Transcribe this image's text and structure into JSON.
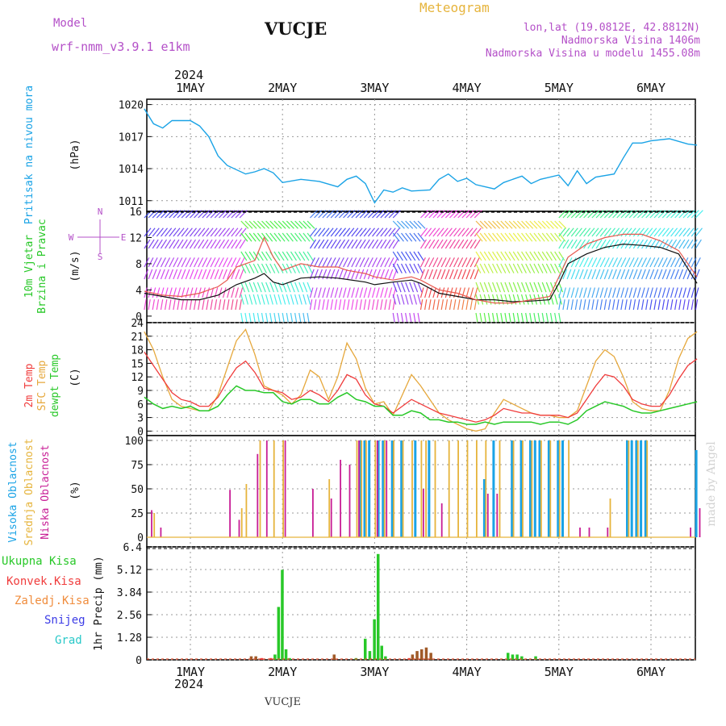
{
  "header": {
    "model_label": "Model",
    "model_name": "wrf-nmm_v3.9.1 e1km",
    "station": "VUCJE",
    "product": "Meteogram",
    "coords": "lon,lat (19.0812E, 42.8812N)",
    "elevation": "Nadmorska Visina 1406m",
    "model_elevation": "Nadmorska Visina u modelu 1455.08m",
    "watermark": "made by Angel",
    "footer_station": "VUCJE"
  },
  "time_axis": {
    "year": "2024",
    "days": [
      "1MAY",
      "2MAY",
      "3MAY",
      "4MAY",
      "5MAY",
      "6MAY"
    ]
  },
  "colors": {
    "pressure": "#1aa3e6",
    "t2m": "#f03c3c",
    "tsfc": "#e6a83c",
    "dewpoint": "#28c828",
    "high_cloud": "#1aa3e6",
    "mid_cloud": "#e6b43c",
    "low_cloud": "#c81e96",
    "total_precip": "#28c828",
    "conv_precip": "#f03c3c",
    "frz_precip": "#f08c3c",
    "snow": "#3c3ce6",
    "hail": "#28c8c8",
    "ylabel_purple": "#b450c8"
  },
  "chart_data": [
    {
      "type": "line",
      "title": "Pritisak na nivou mora",
      "ylabel": "(hPa)",
      "yticks": [
        "1020",
        "1017",
        "1014",
        "1011"
      ],
      "ylim": [
        1010,
        1020.5
      ],
      "x": [
        0.5,
        0.6,
        0.7,
        0.8,
        1.0,
        1.1,
        1.2,
        1.3,
        1.4,
        1.6,
        1.7,
        1.8,
        1.9,
        2.0,
        2.2,
        2.4,
        2.6,
        2.7,
        2.8,
        2.9,
        3.0,
        3.1,
        3.2,
        3.3,
        3.4,
        3.6,
        3.7,
        3.8,
        3.9,
        4.0,
        4.1,
        4.3,
        4.4,
        4.6,
        4.7,
        4.8,
        5.0,
        5.1,
        5.2,
        5.3,
        5.4,
        5.6,
        5.7,
        5.8,
        5.9,
        6.0,
        6.2,
        6.4,
        6.5
      ],
      "series": [
        {
          "values": [
            1019.6,
            1018.2,
            1017.8,
            1018.5,
            1018.5,
            1018.0,
            1017.0,
            1015.2,
            1014.3,
            1013.5,
            1013.7,
            1014.0,
            1013.6,
            1012.7,
            1013.0,
            1012.8,
            1012.3,
            1013.0,
            1013.3,
            1012.6,
            1010.8,
            1012.0,
            1011.8,
            1012.2,
            1011.9,
            1012.0,
            1013.0,
            1013.5,
            1012.8,
            1013.1,
            1012.5,
            1012.1,
            1012.7,
            1013.3,
            1012.6,
            1013.0,
            1013.4,
            1012.4,
            1013.8,
            1012.6,
            1013.2,
            1013.5,
            1015.0,
            1016.4,
            1016.4,
            1016.6,
            1016.8,
            1016.3,
            1016.2
          ]
        }
      ]
    },
    {
      "type": "line",
      "title": "10m Vjetar Brzina i Pravac",
      "ylabel": "(m/s)",
      "direction_legend": [
        "N",
        "S",
        "W",
        "E"
      ],
      "yticks": [
        "16",
        "12",
        "8",
        "4",
        "0"
      ],
      "ylim": [
        -1,
        16
      ],
      "x": [
        0.5,
        0.7,
        0.9,
        1.1,
        1.3,
        1.4,
        1.5,
        1.7,
        1.8,
        1.9,
        2.0,
        2.2,
        2.4,
        2.6,
        2.7,
        2.9,
        3.0,
        3.2,
        3.4,
        3.5,
        3.7,
        3.9,
        4.1,
        4.3,
        4.5,
        4.7,
        4.9,
        5.0,
        5.1,
        5.3,
        5.5,
        5.7,
        5.9,
        6.1,
        6.3,
        6.5
      ],
      "series": [
        {
          "values": [
            3.5,
            3.0,
            2.5,
            2.5,
            3.2,
            4.0,
            4.8,
            5.8,
            6.5,
            5.2,
            4.8,
            5.8,
            6.0,
            5.8,
            5.6,
            5.2,
            4.8,
            5.2,
            5.5,
            5.0,
            3.5,
            3.0,
            2.5,
            2.5,
            2.2,
            2.3,
            2.5,
            5.0,
            8.0,
            9.5,
            10.5,
            11.0,
            10.8,
            10.5,
            9.5,
            5.0
          ]
        },
        {
          "values": [
            3.8,
            3.2,
            3.0,
            3.5,
            4.5,
            5.5,
            7.5,
            8.5,
            12.0,
            9.0,
            7.0,
            8.0,
            7.5,
            7.5,
            7.0,
            6.5,
            6.0,
            5.5,
            6.0,
            5.5,
            4.0,
            3.5,
            2.5,
            2.0,
            2.0,
            2.5,
            3.0,
            6.0,
            9.0,
            11.0,
            12.0,
            12.5,
            12.5,
            11.5,
            10.0,
            6.0
          ]
        }
      ]
    },
    {
      "type": "line",
      "title": "2m Temp / SFC Temp / dewpt Temp",
      "ylabel": "(C)",
      "yticks": [
        "24",
        "21",
        "18",
        "15",
        "12",
        "9",
        "6",
        "3",
        "0"
      ],
      "ylim": [
        -1,
        24
      ],
      "legend": [
        "2m Temp",
        "SFC Temp",
        "dewpt Temp"
      ],
      "x": [
        0.5,
        0.6,
        0.7,
        0.8,
        0.9,
        1.0,
        1.1,
        1.2,
        1.3,
        1.4,
        1.5,
        1.6,
        1.7,
        1.8,
        1.9,
        2.0,
        2.1,
        2.2,
        2.3,
        2.4,
        2.5,
        2.6,
        2.7,
        2.8,
        2.9,
        3.0,
        3.1,
        3.2,
        3.3,
        3.4,
        3.5,
        3.6,
        3.7,
        3.8,
        3.9,
        4.0,
        4.1,
        4.2,
        4.3,
        4.4,
        4.5,
        4.6,
        4.7,
        4.8,
        4.9,
        5.0,
        5.1,
        5.2,
        5.3,
        5.4,
        5.5,
        5.6,
        5.7,
        5.8,
        5.9,
        6.0,
        6.1,
        6.2,
        6.3,
        6.4,
        6.5
      ],
      "series": [
        {
          "name": "2m Temp",
          "values": [
            17.5,
            14.5,
            11.5,
            8.5,
            7.0,
            6.5,
            5.5,
            5.5,
            7.5,
            11.0,
            14.0,
            15.5,
            13.0,
            9.5,
            9.0,
            8.5,
            7.0,
            7.5,
            9.0,
            8.0,
            6.5,
            9.0,
            12.5,
            11.5,
            8.0,
            6.0,
            5.5,
            4.0,
            5.5,
            7.0,
            6.0,
            5.0,
            4.0,
            3.5,
            3.0,
            2.5,
            2.0,
            2.5,
            3.5,
            5.0,
            4.5,
            4.0,
            4.0,
            3.5,
            3.5,
            3.5,
            3.0,
            4.0,
            7.0,
            10.0,
            12.5,
            12.0,
            10.0,
            7.0,
            6.0,
            5.5,
            5.5,
            8.0,
            11.5,
            14.5,
            16.0
          ]
        },
        {
          "name": "SFC Temp",
          "values": [
            22.0,
            18.0,
            12.0,
            7.0,
            5.5,
            5.0,
            4.5,
            4.5,
            8.0,
            14.0,
            20.0,
            22.5,
            17.0,
            10.0,
            9.0,
            8.0,
            6.0,
            8.0,
            13.5,
            12.0,
            7.0,
            12.0,
            19.5,
            16.0,
            9.5,
            6.0,
            6.5,
            3.5,
            8.0,
            12.5,
            10.0,
            7.0,
            4.0,
            2.5,
            1.5,
            0.5,
            0.0,
            0.5,
            4.0,
            7.0,
            6.0,
            5.0,
            4.0,
            3.5,
            3.5,
            3.0,
            3.0,
            4.5,
            10.0,
            15.5,
            18.0,
            16.5,
            12.0,
            6.5,
            5.0,
            4.5,
            4.5,
            9.0,
            16.0,
            20.5,
            22.0
          ]
        },
        {
          "name": "dewpt Temp",
          "values": [
            7.5,
            6.0,
            5.0,
            5.5,
            5.0,
            5.5,
            4.5,
            4.5,
            5.5,
            8.0,
            10.0,
            9.0,
            9.0,
            8.5,
            8.5,
            6.5,
            6.0,
            7.0,
            7.0,
            6.0,
            6.0,
            7.5,
            8.5,
            7.0,
            6.5,
            5.5,
            5.5,
            3.5,
            3.5,
            4.5,
            4.0,
            2.5,
            2.5,
            2.0,
            2.0,
            1.5,
            1.5,
            2.0,
            1.5,
            2.0,
            2.0,
            2.0,
            2.0,
            1.5,
            2.0,
            2.0,
            1.5,
            2.5,
            4.5,
            5.5,
            6.5,
            6.0,
            5.5,
            4.5,
            4.0,
            4.0,
            4.5,
            5.0,
            5.5,
            6.0,
            6.5
          ]
        }
      ]
    },
    {
      "type": "bar",
      "title": "Visoka / Srednja / Niska Oblacnost",
      "ylabel": "(%)",
      "yticks": [
        "100",
        "75",
        "50",
        "25",
        "0"
      ],
      "ylim": [
        0,
        100
      ],
      "legend": [
        "Visoka Oblacnost",
        "Srednja Oblacnost",
        "Niska Oblacnost"
      ],
      "series": [
        {
          "name": "Visoka Oblacnost",
          "x": [
            2.85,
            2.9,
            2.95,
            3.05,
            3.1,
            3.2,
            3.3,
            3.45,
            3.6,
            4.2,
            4.3,
            4.5,
            4.6,
            4.7,
            4.75,
            4.8,
            4.9,
            5.0,
            5.05,
            5.75,
            5.8,
            5.85,
            5.9,
            5.95,
            6.5
          ],
          "values": [
            100,
            100,
            100,
            100,
            100,
            100,
            100,
            100,
            100,
            60,
            100,
            100,
            100,
            100,
            100,
            100,
            100,
            100,
            100,
            100,
            100,
            100,
            100,
            100,
            90
          ]
        },
        {
          "name": "Srednja Oblacnost",
          "x": [
            0.6,
            1.55,
            1.6,
            1.75,
            1.9,
            2.0,
            2.5,
            2.8,
            2.85,
            2.9,
            3.0,
            3.1,
            3.2,
            3.3,
            3.4,
            3.5,
            3.55,
            3.65,
            3.8,
            3.9,
            4.0,
            4.1,
            4.2,
            4.35,
            4.5,
            4.6,
            4.7,
            4.8,
            4.9,
            5.0,
            5.1,
            5.55,
            5.75,
            5.85,
            5.95
          ],
          "values": [
            25,
            30,
            55,
            100,
            100,
            100,
            60,
            100,
            100,
            100,
            100,
            100,
            100,
            100,
            100,
            100,
            100,
            100,
            100,
            100,
            100,
            100,
            100,
            100,
            100,
            100,
            100,
            100,
            100,
            100,
            100,
            40,
            100,
            100,
            100
          ]
        },
        {
          "name": "Niska Oblacnost",
          "x": [
            0.55,
            0.65,
            1.4,
            1.5,
            1.7,
            1.8,
            2.0,
            2.3,
            2.5,
            2.6,
            2.7,
            2.8,
            3.0,
            3.1,
            3.5,
            3.7,
            4.2,
            4.3,
            5.2,
            5.3,
            5.5,
            6.4,
            6.5
          ],
          "values": [
            28,
            10,
            49,
            18,
            86,
            100,
            100,
            50,
            40,
            80,
            75,
            100,
            100,
            100,
            50,
            35,
            45,
            45,
            10,
            10,
            10,
            10,
            30
          ]
        }
      ]
    },
    {
      "type": "bar",
      "title": "1hr Precip",
      "ylabel": "1hr Precip (mm)",
      "yticks": [
        "6.4",
        "5.12",
        "3.84",
        "2.56",
        "1.28",
        "0"
      ],
      "ylim": [
        0,
        6.4
      ],
      "legend": [
        "Ukupna Kisa",
        "Konvek.Kisa",
        "Zaledj.Kisa",
        "Snijeg",
        "Grad"
      ],
      "series": [
        {
          "name": "Ukupna Kisa",
          "x": [
            1.92,
            1.96,
            2.0,
            2.04,
            2.08,
            2.8,
            2.9,
            2.95,
            3.0,
            3.04,
            3.08,
            3.12,
            4.45,
            4.5,
            4.55,
            4.6,
            4.75
          ],
          "values": [
            0.3,
            3.0,
            5.1,
            0.6,
            0.1,
            0.1,
            1.2,
            0.5,
            2.3,
            6.0,
            0.8,
            0.2,
            0.4,
            0.3,
            0.3,
            0.2,
            0.2
          ]
        },
        {
          "name": "Zaledj.Kisa",
          "x": [
            1.65,
            1.7,
            2.55,
            3.4,
            3.45,
            3.5,
            3.55,
            3.6
          ],
          "values": [
            0.2,
            0.2,
            0.3,
            0.3,
            0.5,
            0.6,
            0.7,
            0.4
          ]
        },
        {
          "name": "Konvek.Kisa",
          "x": [
            1.75,
            1.85,
            3.35
          ],
          "values": [
            0.1,
            0.1,
            0.1
          ]
        }
      ]
    }
  ]
}
